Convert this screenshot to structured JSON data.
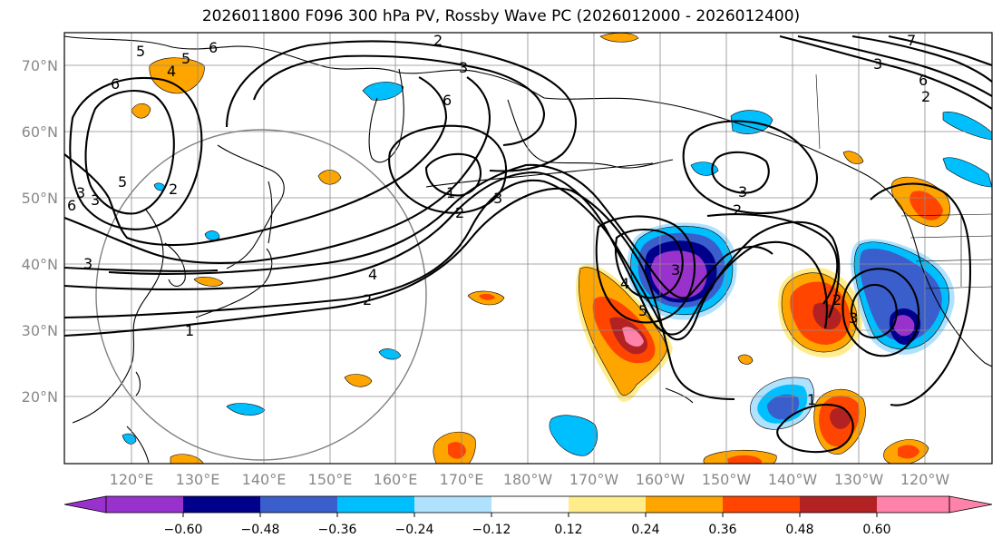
{
  "title": "2026011800 F096 300 hPa PV, Rossby Wave PC (2026012000 - 2026012400)",
  "lat_labels": [
    "70°N",
    "60°N",
    "50°N",
    "40°N",
    "30°N",
    "20°N"
  ],
  "lon_labels": [
    "120°E",
    "130°E",
    "140°E",
    "150°E",
    "160°E",
    "170°E",
    "180°W",
    "170°W",
    "160°W",
    "150°W",
    "140°W",
    "130°W",
    "120°W"
  ],
  "contour_labels": [
    "6",
    "5",
    "4",
    "6",
    "2",
    "3",
    "6",
    "1",
    "2",
    "3",
    "5",
    "3",
    "2",
    "3",
    "3",
    "4",
    "2",
    "1",
    "3",
    "2",
    "5",
    "3",
    "3",
    "2",
    "6",
    "7",
    "1",
    "2",
    "3",
    "4",
    "5",
    "6"
  ],
  "colorbar": {
    "ticks": [
      "−0.60",
      "−0.48",
      "−0.36",
      "−0.24",
      "−0.12",
      "0.12",
      "0.24",
      "0.36",
      "0.48",
      "0.60"
    ],
    "colors": [
      "#9932cc",
      "#00008b",
      "#3a5fcd",
      "#00bfff",
      "#b0e2ff",
      "#ffffff",
      "#ffec8b",
      "#ffa500",
      "#ff4500",
      "#b22222",
      "#ff82ab"
    ]
  },
  "colors": {
    "neg_strong": "#9932cc",
    "neg_4": "#00008b",
    "neg_3": "#3a5fcd",
    "neg_2": "#00bfff",
    "neg_1": "#b0e2ff",
    "pos_1": "#ffec8b",
    "pos_2": "#ffa500",
    "pos_3": "#ff4500",
    "pos_4": "#b22222",
    "pos_strong": "#ff82ab"
  }
}
